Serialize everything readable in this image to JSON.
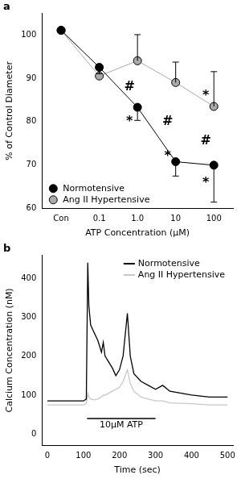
{
  "chart_data": [
    {
      "type": "line",
      "label": "a",
      "x_label": "ATP Concentration (μM)",
      "y_label": "% of Control Diameter",
      "categories": [
        "Con",
        "0.1",
        "1.0",
        "10",
        "100"
      ],
      "series": [
        {
          "name": "Normotensive",
          "color": "#000000",
          "marker": "circle",
          "values": [
            101,
            92.5,
            83.3,
            70.8,
            70
          ],
          "errors_minus": [
            0,
            1.5,
            3,
            3.3,
            8.5
          ]
        },
        {
          "name": "Ang II Hypertensive",
          "color": "#aaaaaa",
          "marker": "circle",
          "values": [
            101,
            90.5,
            94,
            89,
            83.5
          ],
          "errors_plus": [
            0,
            0,
            6,
            4.7,
            8
          ]
        }
      ],
      "annotations": [
        {
          "text": "*",
          "x": "1.0",
          "y": 80
        },
        {
          "text": "*",
          "x": "10",
          "y": 72
        },
        {
          "text": "*",
          "x": "100",
          "y": 66
        },
        {
          "text": "*",
          "x": "100",
          "y": 86
        },
        {
          "text": "#",
          "x": "1.0",
          "y": 88
        },
        {
          "text": "#",
          "x": "10",
          "y": 80
        },
        {
          "text": "#",
          "x": "100",
          "y": 75.5
        }
      ],
      "ylim": [
        60,
        105
      ],
      "yticks": [
        60,
        70,
        80,
        90,
        100
      ],
      "legend": "bottom-left",
      "grid": false
    },
    {
      "type": "line",
      "label": "b",
      "x_label": "Time (sec)",
      "y_label": "Calcium Concentration (nM)",
      "x": [
        0,
        50,
        100,
        108,
        112,
        115,
        120,
        130,
        140,
        150,
        155,
        160,
        170,
        180,
        190,
        200,
        210,
        222,
        230,
        240,
        260,
        280,
        300,
        320,
        340,
        400,
        450,
        500
      ],
      "series": [
        {
          "name": "Normotensive",
          "color": "#000000",
          "values": [
            85,
            85,
            85,
            90,
            440,
            330,
            280,
            260,
            240,
            210,
            235,
            200,
            185,
            170,
            150,
            165,
            200,
            310,
            200,
            155,
            135,
            125,
            115,
            125,
            110,
            100,
            95,
            95
          ]
        },
        {
          "name": "Ang II Hypertensive",
          "color": "#c8c8c8",
          "values": [
            75,
            75,
            75,
            78,
            105,
            95,
            90,
            88,
            90,
            95,
            100,
            100,
            105,
            110,
            115,
            120,
            135,
            165,
            130,
            110,
            95,
            90,
            85,
            85,
            80,
            78,
            75,
            75
          ]
        }
      ],
      "stimulus": {
        "label": "10μM ATP",
        "start": 110,
        "end": 300,
        "y": 40
      },
      "xlim": [
        -15,
        515
      ],
      "xticks": [
        0,
        100,
        200,
        300,
        400,
        500
      ],
      "ylim": [
        -30,
        460
      ],
      "yticks": [
        0,
        100,
        200,
        300,
        400
      ],
      "legend": "top-right",
      "grid": false
    }
  ]
}
